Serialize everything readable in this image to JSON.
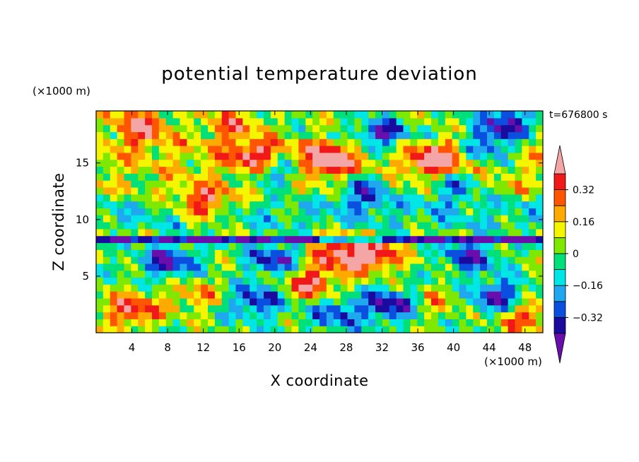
{
  "chart_data": {
    "type": "heatmap",
    "title": "potential temperature deviation",
    "xlabel": "X coordinate",
    "ylabel": "Z coordinate",
    "x_unit": "(×1000 m)",
    "y_unit": "(×1000 m)",
    "timestamp": "t=676800 s",
    "xlim": [
      0,
      50
    ],
    "ylim": [
      0,
      19.6
    ],
    "x_ticks": [
      4,
      8,
      12,
      16,
      20,
      24,
      28,
      32,
      36,
      40,
      44,
      48
    ],
    "y_ticks": [
      5,
      10,
      15
    ],
    "colorbar": {
      "tick_labels": [
        "0.32",
        "0.16",
        "0",
        "−0.16",
        "−0.32"
      ],
      "tick_values": [
        0.32,
        0.16,
        0,
        -0.16,
        -0.32
      ],
      "levels": [
        -0.4,
        -0.32,
        -0.24,
        -0.16,
        -0.08,
        0,
        0.08,
        0.16,
        0.24,
        0.32,
        0.4
      ],
      "colors": [
        "#6a0dad",
        "#1a0a9e",
        "#0a4fe0",
        "#1fa8f0",
        "#00e6e6",
        "#00e07a",
        "#7ee800",
        "#f5f500",
        "#ffaa00",
        "#ff5500",
        "#f01818",
        "#f4a6a6"
      ]
    },
    "features": [
      {
        "x": 4,
        "z": 2,
        "theta": 0.4
      },
      {
        "x": 11,
        "z": 3.2,
        "theta": 0.22
      },
      {
        "x": 18,
        "z": 2.8,
        "theta": -0.36
      },
      {
        "x": 24,
        "z": 4.4,
        "theta": 0.42
      },
      {
        "x": 27,
        "z": 1.8,
        "theta": -0.3
      },
      {
        "x": 33,
        "z": 2.5,
        "theta": -0.42
      },
      {
        "x": 38,
        "z": 2.8,
        "theta": 0.18
      },
      {
        "x": 45,
        "z": 3.2,
        "theta": -0.42
      },
      {
        "x": 48,
        "z": 1.5,
        "theta": 0.35
      },
      {
        "x": 20,
        "z": 6.5,
        "theta": -0.36
      },
      {
        "x": 8,
        "z": 6.3,
        "theta": -0.4
      },
      {
        "x": 31,
        "z": 6.8,
        "theta": 0.44
      },
      {
        "x": 42,
        "z": 6.8,
        "theta": -0.36
      },
      {
        "x": 27,
        "z": 7.2,
        "theta": 0.42
      },
      {
        "x": 12,
        "z": 11.5,
        "theta": 0.42
      },
      {
        "x": 30,
        "z": 12.5,
        "theta": -0.38
      },
      {
        "x": 40,
        "z": 13,
        "theta": -0.3
      },
      {
        "x": 20,
        "z": 14.5,
        "theta": -0.36
      },
      {
        "x": 26,
        "z": 15.2,
        "theta": 0.45
      },
      {
        "x": 18,
        "z": 15.5,
        "theta": 0.4
      },
      {
        "x": 38,
        "z": 15.2,
        "theta": 0.42
      },
      {
        "x": 44,
        "z": 16.5,
        "theta": -0.4
      },
      {
        "x": 32,
        "z": 17.5,
        "theta": -0.42
      },
      {
        "x": 5,
        "z": 18.2,
        "theta": 0.42
      },
      {
        "x": 15,
        "z": 18.3,
        "theta": 0.3
      },
      {
        "x": 46,
        "z": 18.8,
        "theta": -0.38
      }
    ]
  }
}
